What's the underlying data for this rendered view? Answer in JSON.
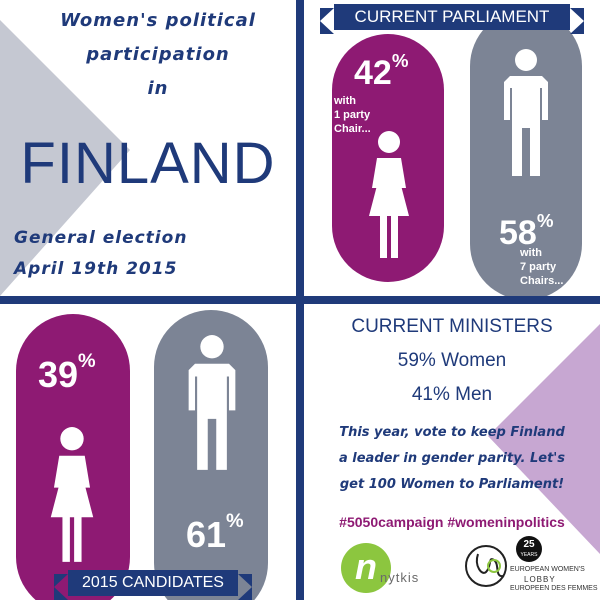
{
  "colors": {
    "navy": "#1f3a7a",
    "purple": "#8e1a73",
    "slate": "#7c8495",
    "lavender": "#c7a7d2",
    "light_grey": "#c5c8d2"
  },
  "title": {
    "line1": "Women's political",
    "line2": "participation",
    "line3": "in",
    "country": "FINLAND",
    "election_line1": "General election",
    "election_line2": "April 19th 2015"
  },
  "parliament": {
    "header": "CURRENT PARLIAMENT",
    "women_pct": "42",
    "women_note": "with\n1 party\nChair...",
    "men_pct": "58",
    "men_note": "with\n7 party\nChairs...",
    "pct_symbol": "%"
  },
  "candidates": {
    "footer": "2015 CANDIDATES",
    "women_pct": "39",
    "men_pct": "61",
    "pct_symbol": "%"
  },
  "ministers": {
    "header": "CURRENT MINISTERS",
    "women": "59% Women",
    "men": "41% Men",
    "call_line1": "This year, vote to keep Finland",
    "call_line2": "a leader in gender parity. Let's",
    "call_line3": "get 100 Women to Parliament!",
    "hashtags": "#5050campaign #womeninpolitics"
  },
  "logos": {
    "nytkis_text": "nytkis",
    "nytkis_letter": "n",
    "ewl_badge": "25",
    "ewl_badge_sub": "YEARS",
    "ewl_line1": "EUROPEAN WOMEN'S",
    "ewl_line2": "LOBBY",
    "ewl_line3": "EUROPEEN DES FEMMES"
  },
  "icons": [
    "female-figure-icon",
    "male-figure-icon"
  ]
}
